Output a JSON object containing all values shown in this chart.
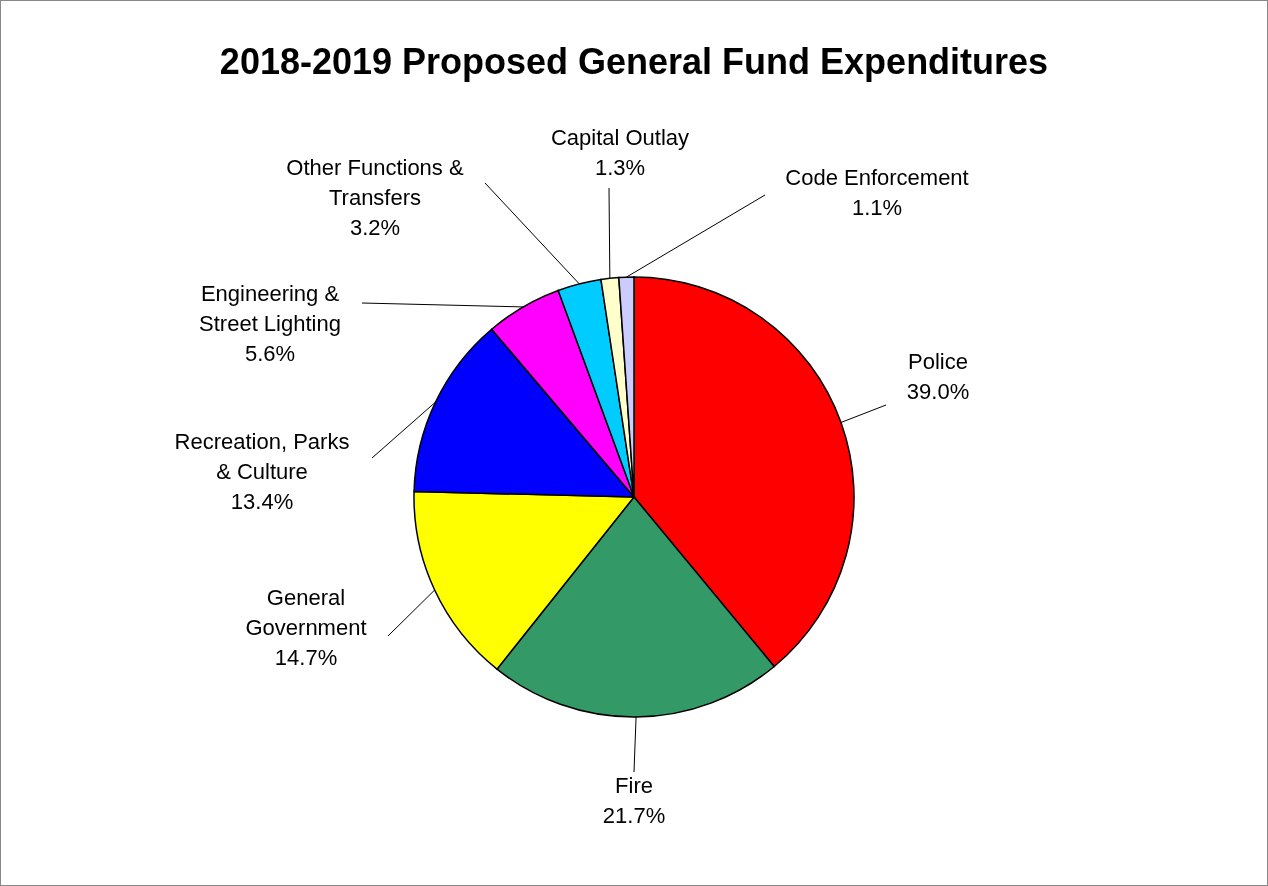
{
  "chart_data": {
    "type": "pie",
    "title": "2018-2019 Proposed General Fund Expenditures",
    "categories": [
      "Police",
      "Fire",
      "General Government",
      "Recreation, Parks & Culture",
      "Engineering & Street Lighting",
      "Other Functions & Transfers",
      "Capital Outlay",
      "Code Enforcement"
    ],
    "values": [
      39.0,
      21.7,
      14.7,
      13.4,
      5.6,
      3.2,
      1.3,
      1.1
    ],
    "colors": [
      "#ff0000",
      "#339966",
      "#ffff00",
      "#0000ff",
      "#ff00ff",
      "#00ccff",
      "#ffffcc",
      "#ccccff"
    ],
    "value_labels": [
      "39.0%",
      "21.7%",
      "14.7%",
      "13.4%",
      "5.6%",
      "3.2%",
      "1.3%",
      "1.1%"
    ]
  }
}
